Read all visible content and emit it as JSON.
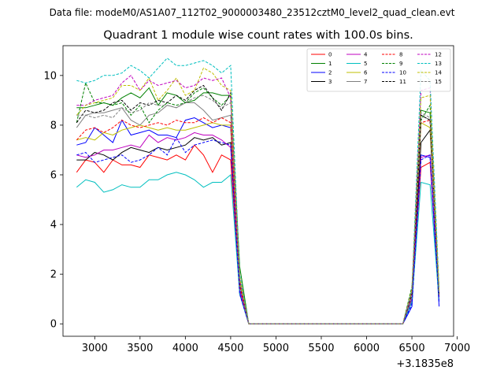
{
  "chart_data": {
    "type": "line",
    "suptitle": "Data file: modeM0/AS1A07_112T02_9000003480_23512cztM0_level2_quad_clean.evt",
    "title": "Quadrant 1 module wise count rates with 100.0s bins.",
    "xlabel": "",
    "ylabel": "",
    "x_offset_label": "+3.1835e8",
    "xlim": [
      2650,
      6960
    ],
    "ylim": [
      -0.5,
      11.2
    ],
    "xticks": [
      3000,
      3500,
      4000,
      4500,
      5000,
      5500,
      6000,
      6500,
      7000
    ],
    "xtick_labels": [
      "3000",
      "3500",
      "4000",
      "4500",
      "5000",
      "5500",
      "6000",
      "6500",
      "7000"
    ],
    "yticks": [
      0,
      2,
      4,
      6,
      8,
      10
    ],
    "ytick_labels": [
      "0",
      "2",
      "4",
      "6",
      "8",
      "10"
    ],
    "legend_position": "top-right",
    "legend_columns": 4,
    "x": [
      2800,
      2900,
      3000,
      3100,
      3200,
      3300,
      3400,
      3500,
      3600,
      3700,
      3800,
      3900,
      4000,
      4100,
      4200,
      4300,
      4400,
      4500,
      4600,
      4700,
      4800,
      4900,
      5000,
      5100,
      5200,
      5300,
      5400,
      5500,
      5600,
      5700,
      5800,
      5900,
      6000,
      6100,
      6200,
      6300,
      6400,
      6500,
      6600,
      6700,
      6800
    ],
    "series": [
      {
        "name": "0",
        "color": "#ff0000",
        "dash": false,
        "values": [
          6.1,
          6.6,
          6.5,
          6.1,
          6.6,
          6.4,
          6.4,
          6.3,
          6.8,
          6.7,
          6.6,
          6.8,
          6.6,
          7.2,
          6.8,
          6.1,
          6.8,
          6.6,
          1.3,
          0,
          0,
          0,
          0,
          0,
          0,
          0,
          0,
          0,
          0,
          0,
          0,
          0,
          0,
          0,
          0,
          0,
          0,
          1.1,
          6.3,
          6.5,
          1.0
        ]
      },
      {
        "name": "1",
        "color": "#008000",
        "dash": false,
        "values": [
          8.7,
          8.7,
          8.8,
          8.9,
          8.8,
          9.1,
          9.3,
          9.1,
          9.5,
          8.8,
          9.3,
          9.2,
          8.9,
          9.0,
          9.3,
          9.3,
          9.2,
          9.2,
          2.3,
          0,
          0,
          0,
          0,
          0,
          0,
          0,
          0,
          0,
          0,
          0,
          0,
          0,
          0,
          0,
          0,
          0,
          0,
          1.4,
          8.6,
          8.5,
          1.2
        ]
      },
      {
        "name": "2",
        "color": "#0000ff",
        "dash": false,
        "values": [
          7.2,
          7.3,
          7.9,
          7.6,
          7.3,
          8.2,
          7.6,
          7.7,
          7.8,
          7.6,
          7.6,
          7.5,
          8.2,
          8.3,
          8.1,
          7.9,
          8.0,
          7.9,
          1.4,
          0,
          0,
          0,
          0,
          0,
          0,
          0,
          0,
          0,
          0,
          0,
          0,
          0,
          0,
          0,
          0,
          0,
          0,
          0.7,
          6.8,
          6.7,
          0.7
        ]
      },
      {
        "name": "3",
        "color": "#000000",
        "dash": false,
        "values": [
          6.6,
          6.6,
          6.9,
          6.8,
          6.6,
          6.9,
          7.1,
          7.0,
          6.9,
          7.1,
          7.0,
          7.1,
          7.2,
          7.5,
          7.4,
          7.5,
          7.2,
          7.3,
          1.2,
          0,
          0,
          0,
          0,
          0,
          0,
          0,
          0,
          0,
          0,
          0,
          0,
          0,
          0,
          0,
          0,
          0,
          0,
          0.9,
          7.3,
          7.8,
          1.1
        ]
      },
      {
        "name": "4",
        "color": "#bf00bf",
        "dash": false,
        "values": [
          6.8,
          6.7,
          6.8,
          7.0,
          7.0,
          7.1,
          7.2,
          7.1,
          7.6,
          7.3,
          7.5,
          7.4,
          7.5,
          7.7,
          7.6,
          7.6,
          7.4,
          7.1,
          1.3,
          0,
          0,
          0,
          0,
          0,
          0,
          0,
          0,
          0,
          0,
          0,
          0,
          0,
          0,
          0,
          0,
          0,
          0,
          1.0,
          6.7,
          6.8,
          1.0
        ]
      },
      {
        "name": "5",
        "color": "#00bfbf",
        "dash": false,
        "values": [
          5.5,
          5.8,
          5.7,
          5.3,
          5.4,
          5.6,
          5.5,
          5.5,
          5.8,
          5.8,
          6.0,
          6.1,
          6.0,
          5.8,
          5.5,
          5.7,
          5.7,
          6.0,
          1.2,
          0,
          0,
          0,
          0,
          0,
          0,
          0,
          0,
          0,
          0,
          0,
          0,
          0,
          0,
          0,
          0,
          0,
          0,
          0.9,
          5.7,
          5.6,
          0.9
        ]
      },
      {
        "name": "6",
        "color": "#bfbf00",
        "dash": false,
        "values": [
          7.4,
          7.5,
          7.4,
          7.7,
          7.6,
          7.8,
          7.9,
          8.0,
          7.9,
          7.8,
          7.9,
          7.8,
          7.8,
          7.9,
          8.0,
          8.1,
          8.0,
          8.0,
          1.6,
          0,
          0,
          0,
          0,
          0,
          0,
          0,
          0,
          0,
          0,
          0,
          0,
          0,
          0,
          0,
          0,
          0,
          0,
          1.4,
          8.1,
          7.9,
          1.2
        ]
      },
      {
        "name": "7",
        "color": "#808080",
        "dash": false,
        "values": [
          7.9,
          8.4,
          8.5,
          8.5,
          8.6,
          8.7,
          8.2,
          8.0,
          8.4,
          8.5,
          8.8,
          8.7,
          8.9,
          8.9,
          8.6,
          8.2,
          8.3,
          8.4,
          1.7,
          0,
          0,
          0,
          0,
          0,
          0,
          0,
          0,
          0,
          0,
          0,
          0,
          0,
          0,
          0,
          0,
          0,
          0,
          1.1,
          8.4,
          8.2,
          1.2
        ]
      },
      {
        "name": "8",
        "color": "#ff0000",
        "dash": true,
        "values": [
          7.4,
          7.8,
          7.9,
          7.7,
          7.9,
          8.2,
          8.0,
          7.9,
          8.0,
          8.1,
          8.0,
          8.2,
          8.1,
          8.1,
          8.3,
          8.1,
          8.3,
          8.1,
          1.5,
          0,
          0,
          0,
          0,
          0,
          0,
          0,
          0,
          0,
          0,
          0,
          0,
          0,
          0,
          0,
          0,
          0,
          0,
          1.2,
          8.1,
          8.2,
          1.1
        ]
      },
      {
        "name": "9",
        "color": "#008000",
        "dash": true,
        "values": [
          8.1,
          9.7,
          8.9,
          8.9,
          8.8,
          8.9,
          8.4,
          8.8,
          8.1,
          8.6,
          8.9,
          8.8,
          8.9,
          9.3,
          9.5,
          9.1,
          8.8,
          9.2,
          1.8,
          0,
          0,
          0,
          0,
          0,
          0,
          0,
          0,
          0,
          0,
          0,
          0,
          0,
          0,
          0,
          0,
          0,
          0,
          1.5,
          8.2,
          8.8,
          1.3
        ]
      },
      {
        "name": "10",
        "color": "#0000ff",
        "dash": true,
        "values": [
          6.8,
          6.9,
          6.5,
          6.6,
          6.7,
          6.8,
          6.5,
          6.6,
          6.8,
          7.1,
          6.8,
          7.5,
          6.9,
          7.2,
          7.3,
          7.4,
          7.3,
          7.2,
          1.2,
          0,
          0,
          0,
          0,
          0,
          0,
          0,
          0,
          0,
          0,
          0,
          0,
          0,
          0,
          0,
          0,
          0,
          0,
          0.8,
          6.6,
          6.8,
          0.9
        ]
      },
      {
        "name": "11",
        "color": "#000000",
        "dash": true,
        "values": [
          8.1,
          8.6,
          8.5,
          8.6,
          8.9,
          9.0,
          8.6,
          8.9,
          8.8,
          9.0,
          8.9,
          9.2,
          9.0,
          9.4,
          9.6,
          9.1,
          8.6,
          9.3,
          1.7,
          0,
          0,
          0,
          0,
          0,
          0,
          0,
          0,
          0,
          0,
          0,
          0,
          0,
          0,
          0,
          0,
          0,
          0,
          1.2,
          8.4,
          8.2,
          1.2
        ]
      },
      {
        "name": "12",
        "color": "#bf00bf",
        "dash": true,
        "values": [
          8.8,
          8.8,
          9.0,
          9.1,
          9.2,
          9.7,
          10.0,
          9.4,
          9.8,
          9.6,
          9.7,
          9.8,
          9.5,
          9.6,
          9.9,
          9.8,
          9.9,
          9.1,
          1.8,
          0,
          0,
          0,
          0,
          0,
          0,
          0,
          0,
          0,
          0,
          0,
          0,
          0,
          0,
          0,
          0,
          0,
          0,
          1.3,
          9.4,
          9.5,
          1.3
        ]
      },
      {
        "name": "13",
        "color": "#00bfbf",
        "dash": true,
        "values": [
          9.8,
          9.7,
          9.8,
          10.0,
          10.0,
          10.1,
          10.4,
          10.2,
          9.9,
          10.3,
          10.7,
          10.4,
          10.4,
          10.5,
          10.6,
          10.4,
          10.1,
          10.4,
          2.0,
          0,
          0,
          0,
          0,
          0,
          0,
          0,
          0,
          0,
          0,
          0,
          0,
          0,
          0,
          0,
          0,
          0,
          0,
          1.4,
          10.2,
          9.8,
          1.4
        ]
      },
      {
        "name": "14",
        "color": "#bfbf00",
        "dash": true,
        "values": [
          8.4,
          8.8,
          8.9,
          9.0,
          9.1,
          9.6,
          9.6,
          9.4,
          9.9,
          9.0,
          9.4,
          9.9,
          9.2,
          9.4,
          10.3,
          10.1,
          9.6,
          9.4,
          1.9,
          0,
          0,
          0,
          0,
          0,
          0,
          0,
          0,
          0,
          0,
          0,
          0,
          0,
          0,
          0,
          0,
          0,
          0,
          1.4,
          9.1,
          9.2,
          1.3
        ]
      },
      {
        "name": "15",
        "color": "#808080",
        "dash": true,
        "values": [
          8.4,
          8.4,
          8.3,
          8.4,
          8.3,
          8.7,
          8.5,
          8.6,
          8.9,
          8.8,
          8.8,
          8.7,
          8.9,
          9.1,
          9.2,
          9.0,
          8.7,
          8.9,
          1.7,
          0,
          0,
          0,
          0,
          0,
          0,
          0,
          0,
          0,
          0,
          0,
          0,
          0,
          0,
          0,
          0,
          0,
          0,
          1.3,
          8.5,
          8.3,
          1.2
        ]
      }
    ]
  }
}
